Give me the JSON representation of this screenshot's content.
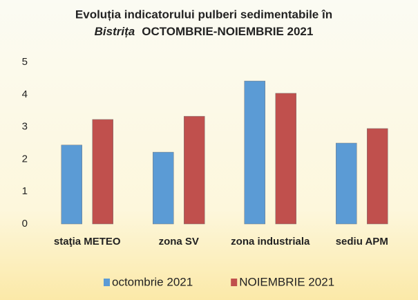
{
  "chart_data": {
    "type": "bar",
    "title": [
      "Evoluția indicatorului pulberi sedimentabile în",
      "Bistrița",
      "OCTOMBRIE-NOIEMBRIE 2021"
    ],
    "categories": [
      "staţia METEO",
      "zona SV",
      "zona industriala",
      "sediu APM"
    ],
    "series": [
      {
        "name": "octombrie 2021",
        "color": "#5b9bd5",
        "values": [
          2.44,
          2.22,
          4.42,
          2.5
        ]
      },
      {
        "name": "NOIEMBRIE 2021",
        "color": "#c0504d",
        "values": [
          3.23,
          3.33,
          4.04,
          2.95
        ]
      }
    ],
    "ylim": [
      0,
      5
    ],
    "yticks": [
      0,
      1,
      2,
      3,
      4,
      5
    ],
    "grid": false,
    "legend": "bottom"
  }
}
